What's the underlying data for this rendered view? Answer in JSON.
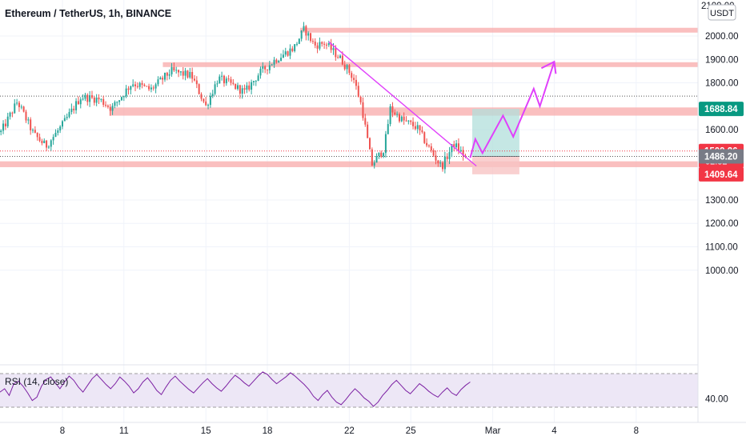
{
  "header": {
    "symbol_title": "Ethereum / TetherUS, 1h, BINANCE",
    "currency_badge": "USDT",
    "top_tick": "2100.00"
  },
  "colors": {
    "up_candle": "#26a69a",
    "down_candle": "#ef5350",
    "zone_fill": "#f8a9a9",
    "projection": "#e040fb",
    "trendline": "#e040fb",
    "profit_box": "#b2dfdb",
    "loss_box": "#f8c4c4",
    "rsi_line": "#7b1fa2",
    "rsi_band": "#ede7f6",
    "level_green": "#089981",
    "level_red": "#f23645",
    "level_gray": "#787b86"
  },
  "chart_data": [
    {
      "type": "candlestick",
      "title": "Ethereum / TetherUS, 1h, BINANCE",
      "x_tick_labels": [
        "8",
        "11",
        "15",
        "18",
        "22",
        "25",
        "Mar",
        "4",
        "8"
      ],
      "y_tick_labels": [
        "2000.00",
        "1900.00",
        "1800.00",
        "1600.00",
        "1300.00",
        "1200.00",
        "1100.00",
        "1000.00"
      ],
      "y_ticks": [
        2000,
        1900,
        1800,
        1600,
        1300,
        1200,
        1100,
        1000
      ],
      "ylim": [
        950,
        2110
      ],
      "price_path": [
        {
          "day": 5.0,
          "price": 1590
        },
        {
          "day": 5.8,
          "price": 1720
        },
        {
          "day": 6.6,
          "price": 1580
        },
        {
          "day": 7.2,
          "price": 1530
        },
        {
          "day": 8.0,
          "price": 1620
        },
        {
          "day": 8.9,
          "price": 1740
        },
        {
          "day": 9.8,
          "price": 1730
        },
        {
          "day": 10.4,
          "price": 1690
        },
        {
          "day": 11.4,
          "price": 1800
        },
        {
          "day": 12.3,
          "price": 1770
        },
        {
          "day": 13.3,
          "price": 1850
        },
        {
          "day": 14.3,
          "price": 1830
        },
        {
          "day": 15.0,
          "price": 1700
        },
        {
          "day": 15.6,
          "price": 1820
        },
        {
          "day": 16.3,
          "price": 1790
        },
        {
          "day": 16.9,
          "price": 1760
        },
        {
          "day": 17.6,
          "price": 1840
        },
        {
          "day": 18.4,
          "price": 1900
        },
        {
          "day": 19.3,
          "price": 1950
        },
        {
          "day": 19.8,
          "price": 2030
        },
        {
          "day": 20.3,
          "price": 1960
        },
        {
          "day": 20.8,
          "price": 1970
        },
        {
          "day": 21.6,
          "price": 1900
        },
        {
          "day": 22.2,
          "price": 1820
        },
        {
          "day": 22.6,
          "price": 1700
        },
        {
          "day": 23.1,
          "price": 1450
        },
        {
          "day": 23.7,
          "price": 1520
        },
        {
          "day": 24.0,
          "price": 1690
        },
        {
          "day": 24.6,
          "price": 1640
        },
        {
          "day": 25.3,
          "price": 1610
        },
        {
          "day": 25.9,
          "price": 1520
        },
        {
          "day": 26.5,
          "price": 1440
        },
        {
          "day": 27.1,
          "price": 1540
        },
        {
          "day": 27.7,
          "price": 1480
        }
      ],
      "resistance_zones": [
        {
          "start_day": 19.6,
          "low": 2015,
          "high": 2035
        },
        {
          "start_day": 12.9,
          "low": 1868,
          "high": 1888
        },
        {
          "start_day": 10.3,
          "low": 1660,
          "high": 1695
        },
        {
          "start_day": 4.6,
          "low": 1440,
          "high": 1465
        }
      ],
      "trendline": [
        {
          "day": 21.0,
          "price": 1975
        },
        {
          "day": 28.2,
          "price": 1445
        }
      ],
      "projection_path": [
        {
          "day": 27.9,
          "price": 1480
        },
        {
          "day": 28.15,
          "price": 1560
        },
        {
          "day": 28.5,
          "price": 1500
        },
        {
          "day": 29.5,
          "price": 1660
        },
        {
          "day": 30.0,
          "price": 1570
        },
        {
          "day": 31.0,
          "price": 1775
        },
        {
          "day": 31.3,
          "price": 1700
        },
        {
          "day": 32.0,
          "price": 1890
        }
      ],
      "position_tool": {
        "start_day": 28.0,
        "end_day": 30.3,
        "entry": 1486.2,
        "target": 1688.84,
        "stop": 1409.64
      },
      "dotted_levels": [
        1743.5,
        1509.26,
        1486.2
      ],
      "price_labels": [
        {
          "text": "1688.84",
          "price": 1688.84,
          "color": "#089981"
        },
        {
          "text": "1509.26",
          "price": 1509.26,
          "color": "#f23645",
          "countdown": "02:32"
        },
        {
          "text": "1486.20",
          "price": 1486.2,
          "color": "#787b86"
        },
        {
          "text": "1409.64",
          "price": 1409.64,
          "color": "#f23645"
        }
      ]
    },
    {
      "type": "line",
      "title": "RSI (14, close)",
      "y_tick_labels": [
        "40.00"
      ],
      "ylim": [
        25,
        85
      ],
      "band": [
        30,
        70
      ],
      "series": [
        {
          "values": [
            48,
            52,
            44,
            58,
            61,
            55,
            47,
            38,
            42,
            55,
            63,
            66,
            59,
            52,
            60,
            67,
            62,
            54,
            48,
            56,
            64,
            69,
            63,
            57,
            52,
            58,
            66,
            61,
            55,
            47,
            52,
            60,
            65,
            58,
            50,
            45,
            54,
            62,
            67,
            61,
            56,
            51,
            47,
            53,
            59,
            64,
            58,
            53,
            49,
            55,
            62,
            68,
            64,
            59,
            55,
            61,
            67,
            72,
            69,
            63,
            58,
            62,
            66,
            71,
            67,
            62,
            57,
            51,
            43,
            38,
            45,
            50,
            42,
            36,
            33,
            39,
            46,
            52,
            47,
            41,
            37,
            31,
            36,
            44,
            50,
            57,
            62,
            56,
            50,
            46,
            52,
            58,
            54,
            49,
            45,
            42,
            48,
            53,
            47,
            44,
            51,
            56,
            60
          ]
        }
      ]
    }
  ]
}
